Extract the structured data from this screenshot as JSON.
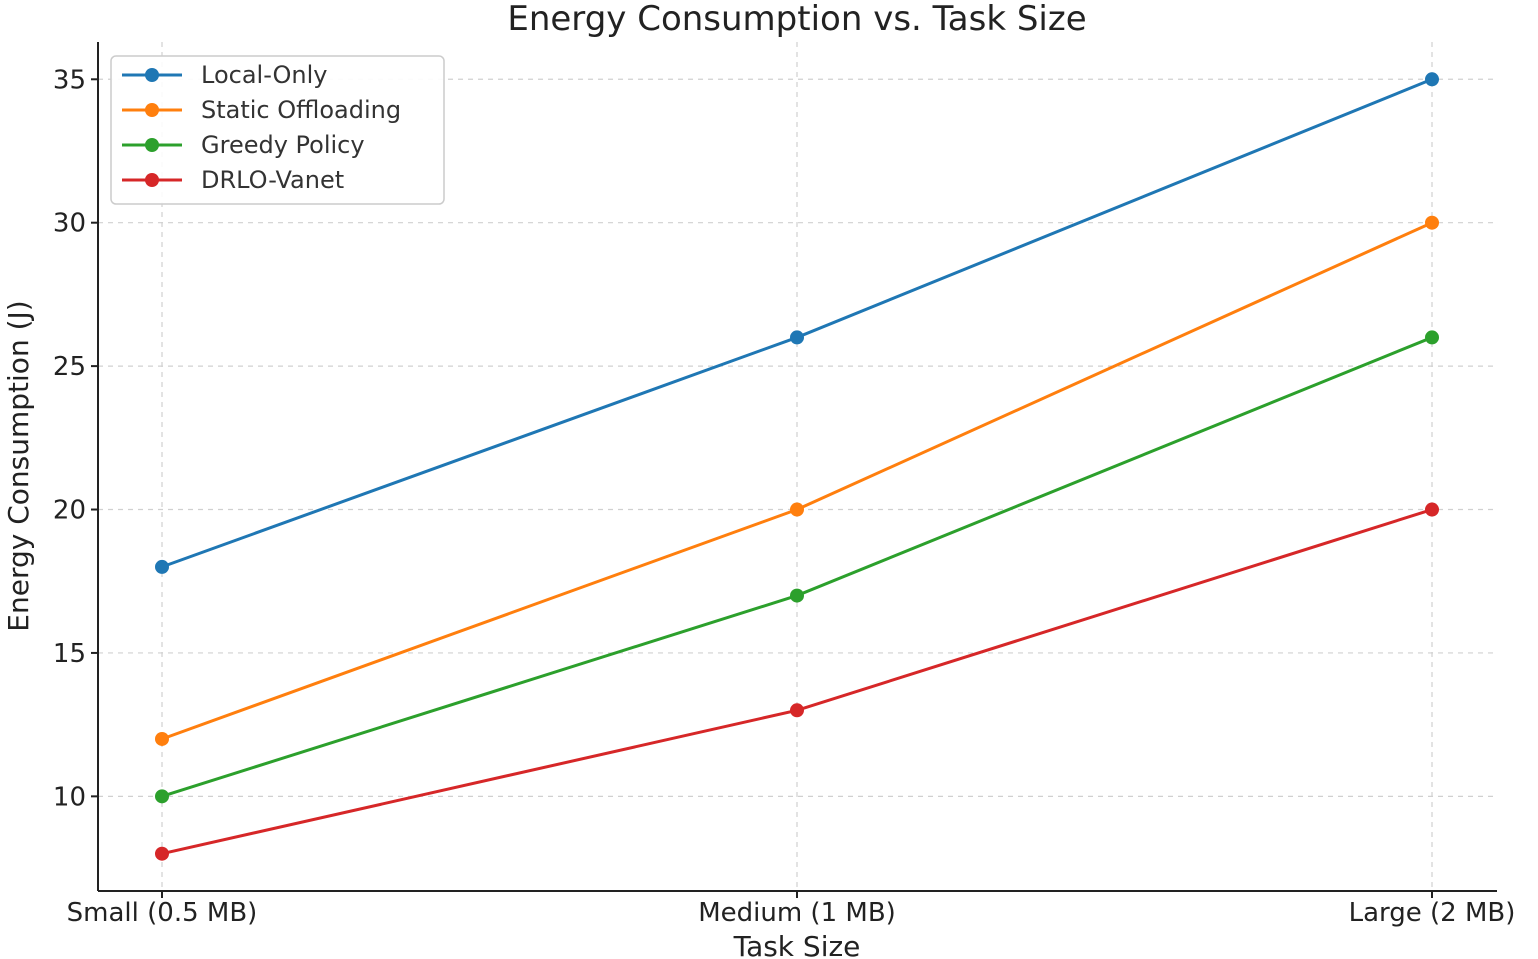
{
  "chart_data": {
    "type": "line",
    "title": "Energy Consumption vs. Task Size",
    "xlabel": "Task Size",
    "ylabel": "Energy Consumption (J)",
    "categories": [
      "Small (0.5 MB)",
      "Medium (1 MB)",
      "Large (2 MB)"
    ],
    "yticks": [
      10,
      15,
      20,
      25,
      30,
      35
    ],
    "ylim": [
      6.7,
      36.3
    ],
    "grid": true,
    "legend_position": "top-left",
    "series": [
      {
        "name": "Local-Only",
        "color": "#1f77b4",
        "values": [
          18,
          26,
          35
        ]
      },
      {
        "name": "Static Offloading",
        "color": "#ff7f0e",
        "values": [
          12,
          20,
          30
        ]
      },
      {
        "name": "Greedy Policy",
        "color": "#2ca02c",
        "values": [
          10,
          17,
          26
        ]
      },
      {
        "name": "DRLO-Vanet",
        "color": "#d62728",
        "values": [
          8,
          13,
          20
        ]
      }
    ]
  }
}
